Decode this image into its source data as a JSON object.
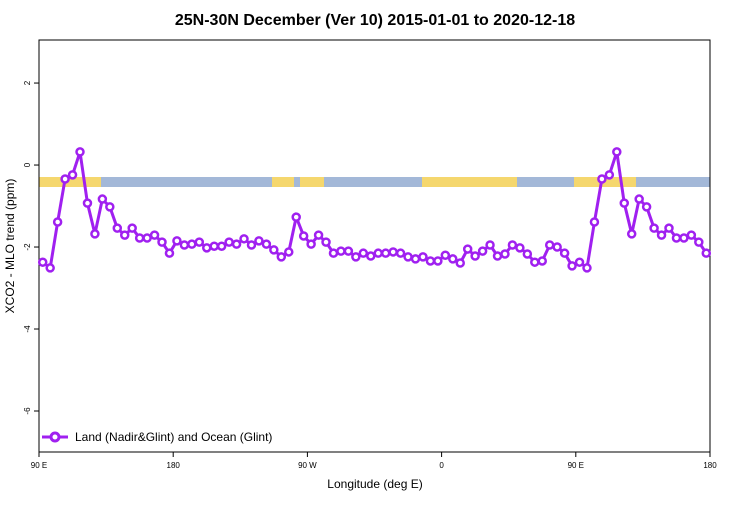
{
  "chart_data": {
    "type": "line",
    "title": "25N-30N December (Ver 10)   2015-01-01 to 2020-12-18",
    "x_label": "Longitude (deg E)",
    "y_label": "XCO2 - MLO trend (ppm)",
    "xlim": [
      90,
      540
    ],
    "ylim": [
      -7,
      3.05
    ],
    "xticks": [
      {
        "value": 90,
        "label": "90 E"
      },
      {
        "value": 180,
        "label": "180"
      },
      {
        "value": 270,
        "label": "90 W"
      },
      {
        "value": 360,
        "label": "0"
      },
      {
        "value": 450,
        "label": "90 E"
      },
      {
        "value": 540,
        "label": "180"
      }
    ],
    "yticks": [
      -6,
      -4,
      -2,
      0,
      2
    ],
    "legend": "bottom-left",
    "x": [
      92.5,
      97.5,
      102.5,
      107.5,
      112.5,
      117.5,
      122.5,
      127.5,
      132.5,
      137.5,
      142.5,
      147.5,
      152.5,
      157.5,
      162.5,
      167.5,
      172.5,
      177.5,
      182.5,
      187.5,
      192.5,
      197.5,
      202.5,
      207.5,
      212.5,
      217.5,
      222.5,
      227.5,
      232.5,
      237.5,
      242.5,
      247.5,
      252.5,
      257.5,
      262.5,
      267.5,
      272.5,
      277.5,
      282.5,
      287.5,
      292.5,
      297.5,
      302.5,
      307.5,
      312.5,
      317.5,
      322.5,
      327.5,
      332.5,
      337.5,
      342.5,
      347.5,
      352.5,
      357.5,
      362.5,
      367.5,
      372.5,
      377.5,
      382.5,
      387.5,
      392.5,
      397.5,
      402.5,
      407.5,
      412.5,
      417.5,
      422.5,
      427.5,
      432.5,
      437.5,
      442.5,
      447.5,
      452.5,
      457.5,
      462.5,
      467.5,
      472.5,
      477.5,
      482.5,
      487.5,
      492.5,
      497.5,
      502.5,
      507.5,
      512.5,
      517.5,
      522.5,
      527.5,
      532.5,
      537.5
    ],
    "series": [
      {
        "name": "Land (Nadir&Glint) and Ocean (Glint)",
        "color": "#a020f0",
        "values": [
          -2.37,
          -2.51,
          -1.39,
          -0.34,
          -0.24,
          0.32,
          -0.93,
          -1.68,
          -0.83,
          -1.02,
          -1.54,
          -1.71,
          -1.54,
          -1.78,
          -1.78,
          -1.71,
          -1.88,
          -2.15,
          -1.85,
          -1.95,
          -1.93,
          -1.88,
          -2.02,
          -1.98,
          -1.98,
          -1.88,
          -1.93,
          -1.8,
          -1.95,
          -1.85,
          -1.93,
          -2.07,
          -2.24,
          -2.12,
          -1.27,
          -1.73,
          -1.93,
          -1.71,
          -1.88,
          -2.15,
          -2.1,
          -2.1,
          -2.24,
          -2.15,
          -2.22,
          -2.15,
          -2.15,
          -2.12,
          -2.15,
          -2.24,
          -2.29,
          -2.24,
          -2.34,
          -2.34,
          -2.2,
          -2.29,
          -2.39,
          -2.05,
          -2.22,
          -2.1,
          -1.95,
          -2.22,
          -2.17,
          -1.95,
          -2.02,
          -2.17,
          -2.37,
          -2.34,
          -1.95,
          -2.0,
          -2.15,
          -2.46,
          -2.37,
          -2.51,
          -1.39,
          -0.34,
          -0.24,
          0.32,
          -0.93,
          -1.68,
          -0.83,
          -1.02,
          -1.54,
          -1.71,
          -1.54,
          -1.78,
          -1.78,
          -1.71,
          -1.88,
          -2.15
        ]
      }
    ]
  }
}
